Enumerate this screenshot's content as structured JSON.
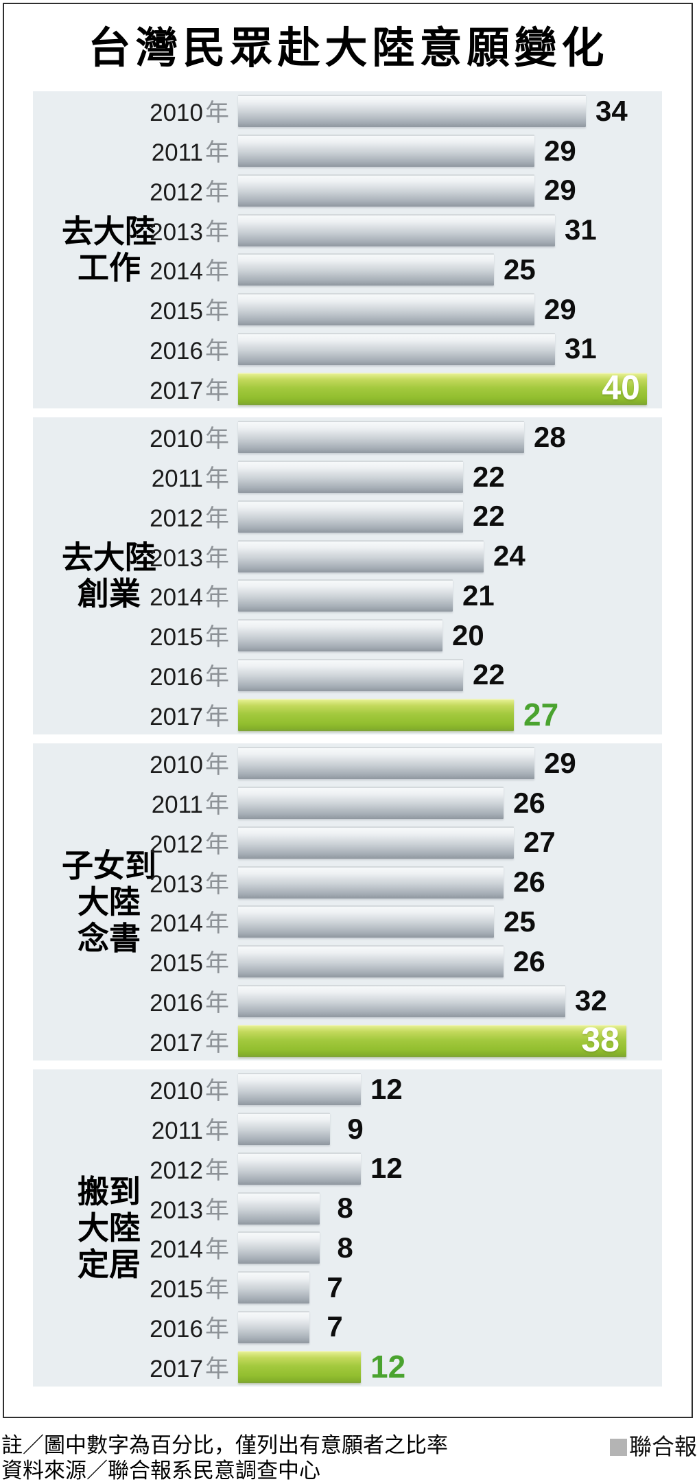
{
  "title": "台灣民眾赴大陸意願變化",
  "chart_data": {
    "type": "bar",
    "orientation": "horizontal",
    "title": "台灣民眾赴大陸意願變化",
    "unit": "percent",
    "value_range": [
      0,
      40
    ],
    "years": [
      "2010",
      "2011",
      "2012",
      "2013",
      "2014",
      "2015",
      "2016",
      "2017"
    ],
    "year_suffix": "年",
    "highlight_year": "2017",
    "panels": [
      {
        "category": "去大陸工作",
        "category_lines": [
          "去大陸",
          "工作"
        ],
        "values": [
          34,
          29,
          29,
          31,
          25,
          29,
          31,
          40
        ],
        "highlight_value_position": "inside"
      },
      {
        "category": "去大陸創業",
        "category_lines": [
          "去大陸",
          "創業"
        ],
        "values": [
          28,
          22,
          22,
          24,
          21,
          20,
          22,
          27
        ],
        "highlight_value_position": "outside"
      },
      {
        "category": "子女到大陸念書",
        "category_lines": [
          "子女到",
          "大陸",
          "念書"
        ],
        "values": [
          29,
          26,
          27,
          26,
          25,
          26,
          32,
          38
        ],
        "highlight_value_position": "inside"
      },
      {
        "category": "搬到大陸定居",
        "category_lines": [
          "搬到",
          "大陸",
          "定居"
        ],
        "values": [
          12,
          9,
          12,
          8,
          8,
          7,
          7,
          12
        ],
        "highlight_value_position": "outside"
      }
    ],
    "legend_position": "none",
    "grid": false
  },
  "colors": {
    "panel_background": "#e9eef1",
    "bar_gray": "#a8b0b8",
    "bar_highlight_green": "#93bf30",
    "highlight_text_green": "#4aa32f",
    "brand_square_gray": "#b4b4b4",
    "text_black": "#000000",
    "year_suffix_gray": "#8d9297"
  },
  "footer": {
    "note": "註／圖中數字為百分比，僅列出有意願者之比率",
    "source": "資料來源／聯合報系民意調查中心",
    "brand": "聯合報"
  }
}
